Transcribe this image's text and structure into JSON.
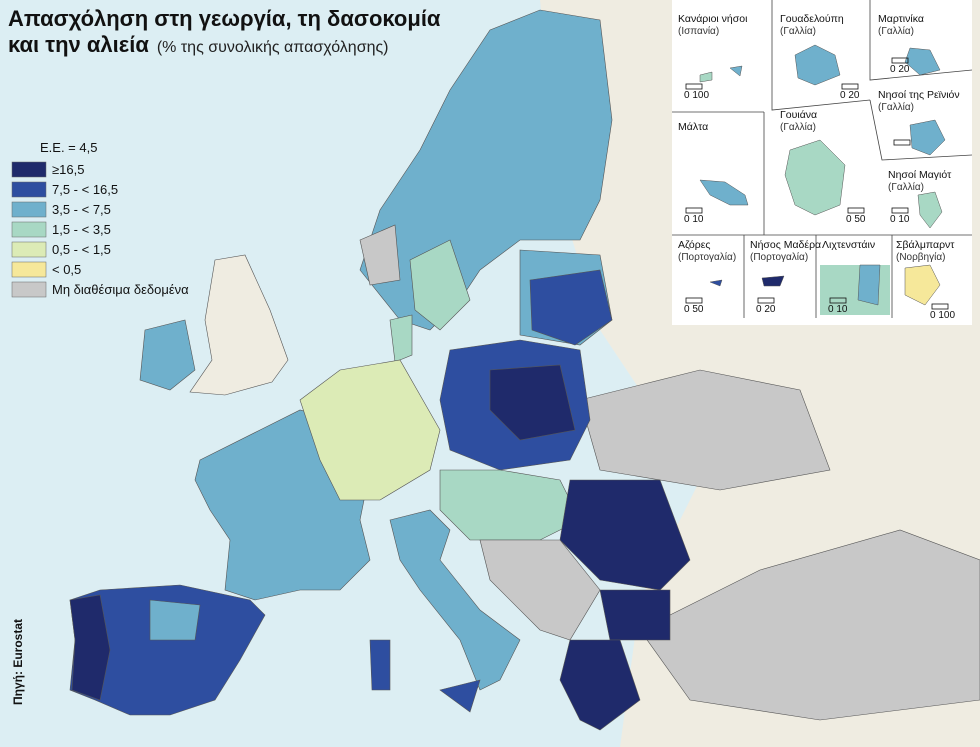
{
  "header": {
    "title": "Απασχόληση στη γεωργία, τη δασοκομία",
    "title_line2": "και την αλιεία",
    "subtitle": "(% της συνολικής απασχόλησης)"
  },
  "legend": {
    "eu": "Ε.Ε. = 4,5",
    "items": [
      {
        "label": "≥16,5",
        "color": "#1f2a6b"
      },
      {
        "label": "7,5 - < 16,5",
        "color": "#2e4ea0"
      },
      {
        "label": "3,5 - < 7,5",
        "color": "#6fb0cc"
      },
      {
        "label": "1,5 - < 3,5",
        "color": "#a8d8c4"
      },
      {
        "label": "0,5 - < 1,5",
        "color": "#dcebb6"
      },
      {
        "label": "< 0,5",
        "color": "#f6e89a"
      },
      {
        "label": "Μη διαθέσιμα δεδομένα",
        "color": "#c8c8c8"
      }
    ]
  },
  "insets": [
    {
      "name": "Κανάριοι νήσοι",
      "country": "(Ισπανία)",
      "scale": "0  100"
    },
    {
      "name": "Γουαδελούπη",
      "country": "(Γαλλία)",
      "scale": "0  20"
    },
    {
      "name": "Μαρτινίκα",
      "country": "(Γαλλία)",
      "scale": "0  20"
    },
    {
      "name": "Μάλτα",
      "scale": "0  10"
    },
    {
      "name": "Γουιάνα",
      "country": "(Γαλλία)",
      "scale": "0  50"
    },
    {
      "name": "Νησοί της Ρεϊνιόν",
      "country": "(Γαλλία)"
    },
    {
      "name": "Νησοί Μαγιότ",
      "country": "(Γαλλία)",
      "scale": "0  10"
    },
    {
      "name": "Αζόρες",
      "country": "(Πορτογαλία)",
      "scale": "0  50"
    },
    {
      "name": "Νήσος Μαδέρα",
      "country": "(Πορτογαλία)",
      "scale": "0  20"
    },
    {
      "name": "Λιχτενστάιν",
      "scale": "0  10"
    },
    {
      "name": "Σβάλμπαρντ",
      "country": "(Νορβηγία)",
      "scale": "0  100"
    }
  ],
  "source": "Πηγή: Eurostat"
}
